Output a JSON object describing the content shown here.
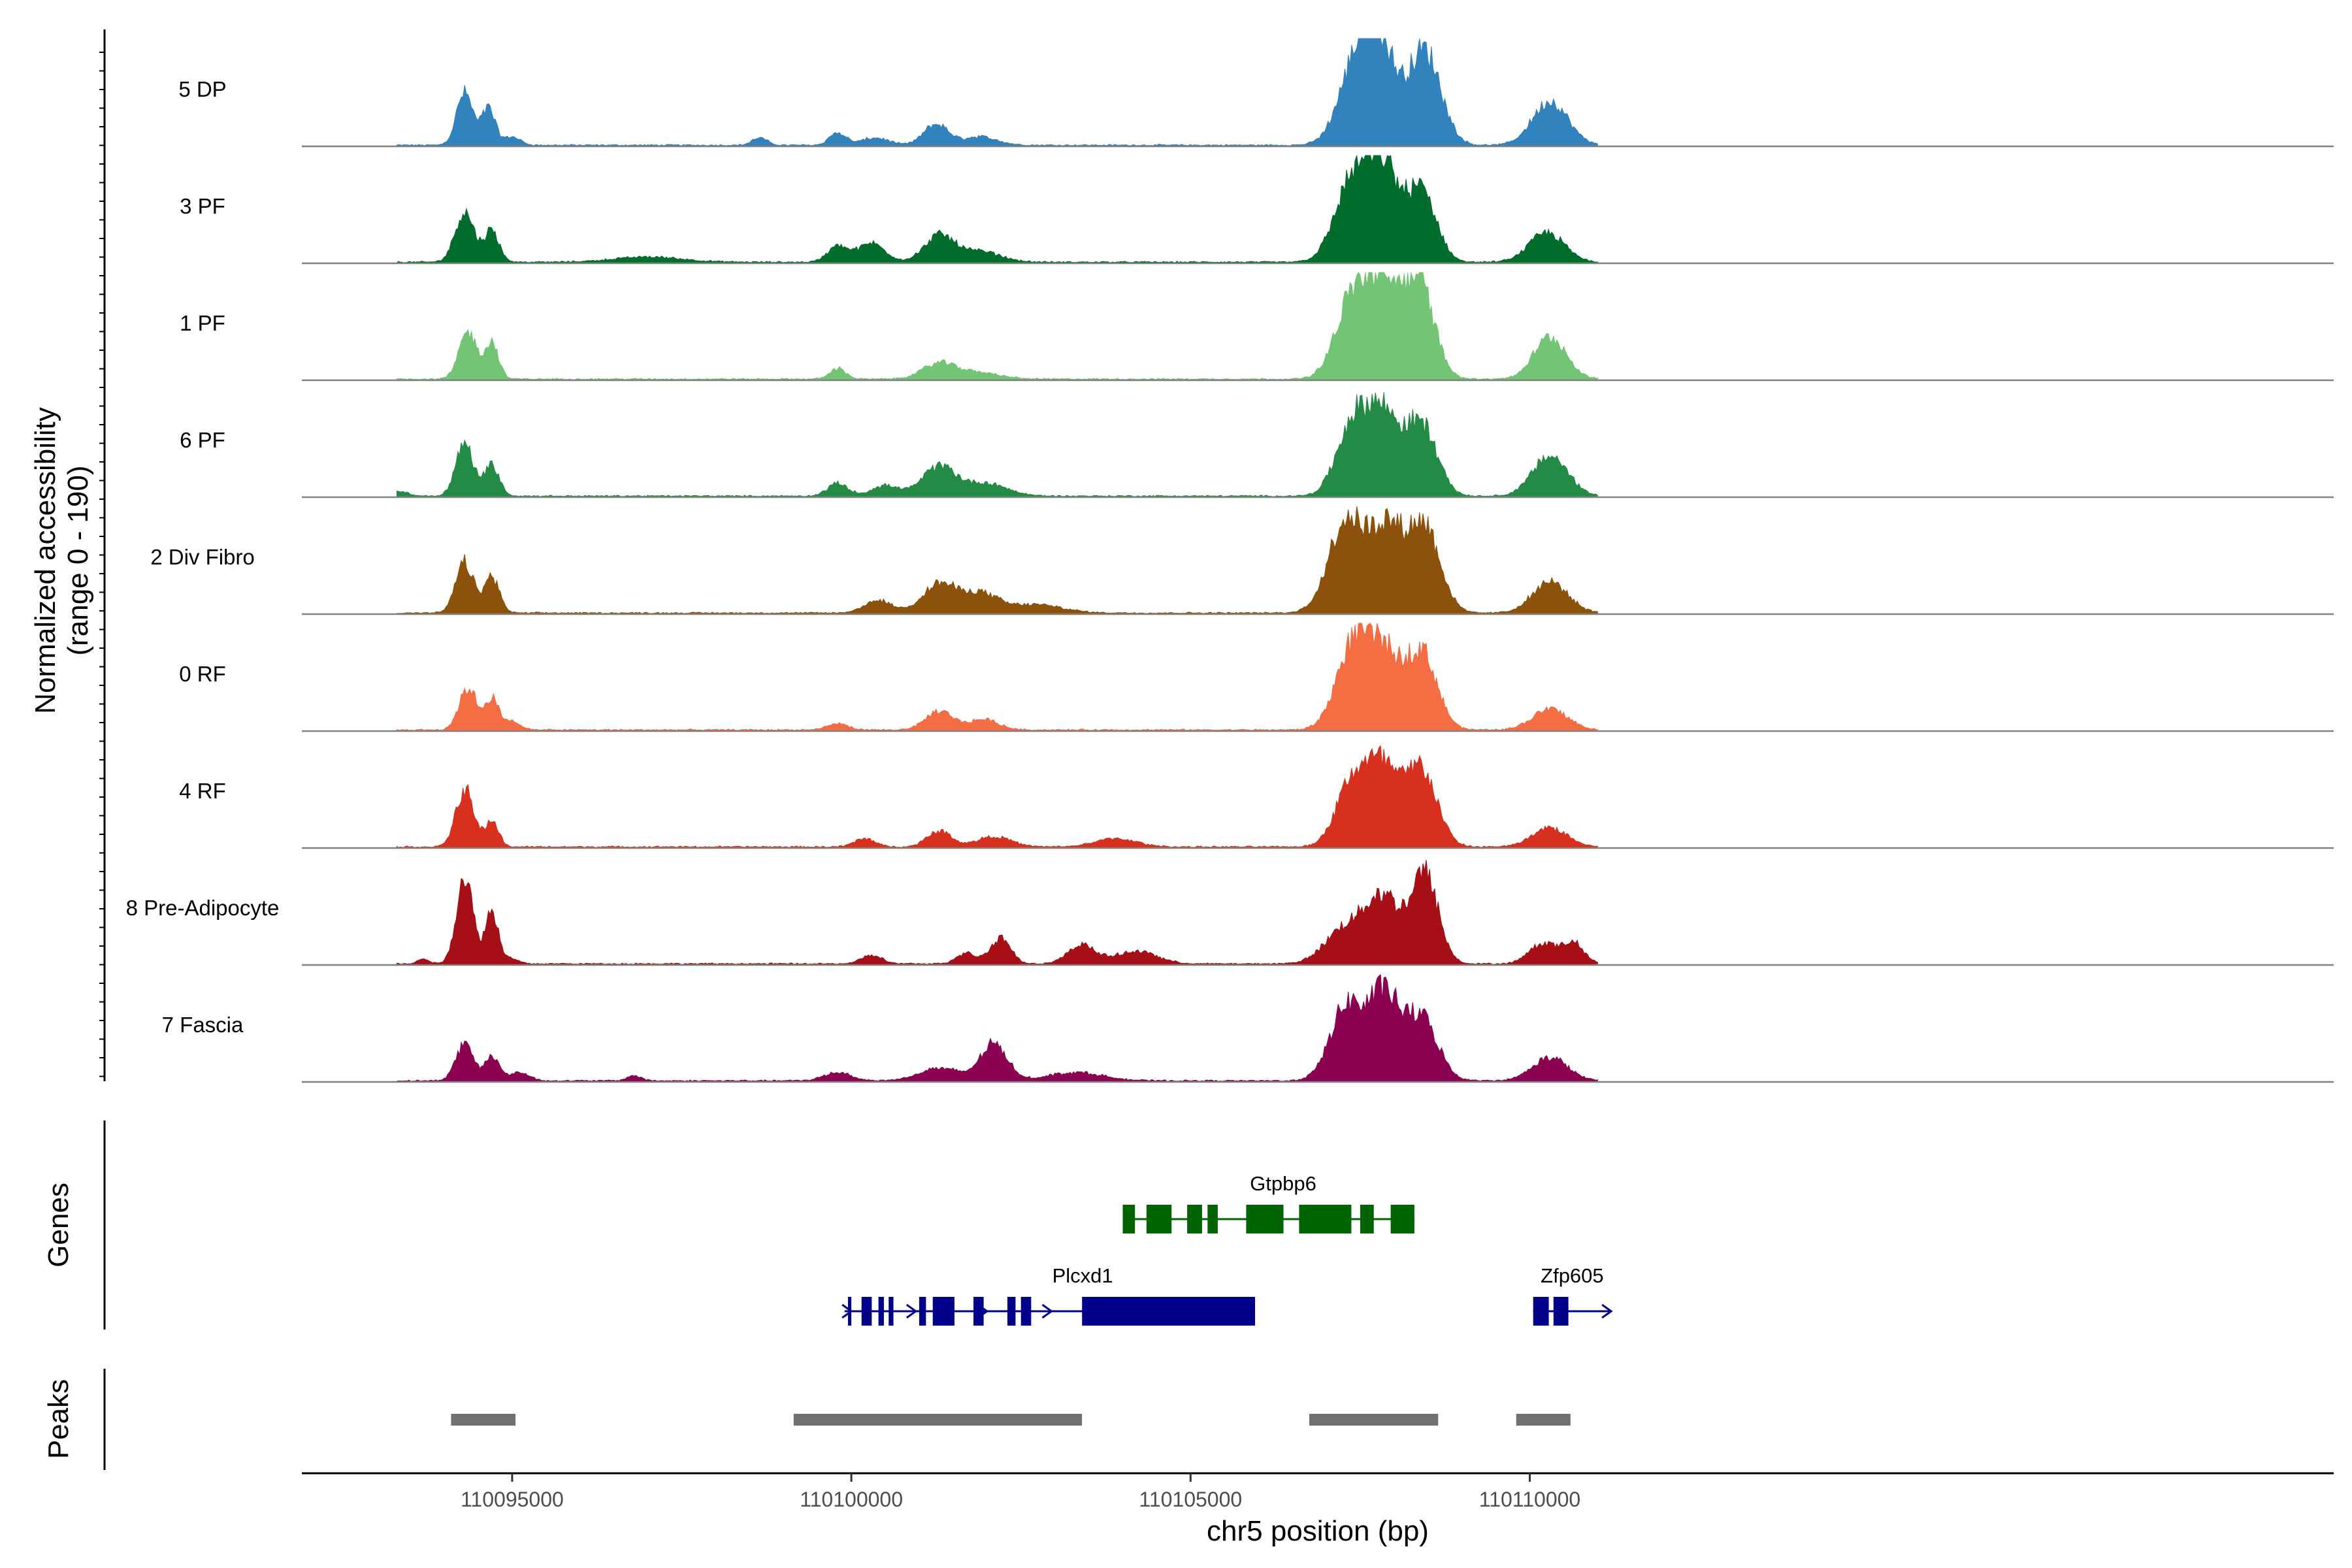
{
  "chart_data": {
    "type": "area",
    "region": {
      "chrom": "chr5",
      "start": 110091900,
      "end": 110121850
    },
    "y_axis_title": [
      "Normalized accessibility",
      "(range 0 - 190)"
    ],
    "y_range": [
      0,
      190
    ],
    "x_axis_title": "chr5 position (bp)",
    "x_ticks": [
      110095000,
      110100000,
      110105000,
      110110000
    ],
    "x_tick_labels": [
      "110095000",
      "110100000",
      "110105000",
      "110110000"
    ],
    "tracks": [
      {
        "name": "5 DP",
        "color": "#3182bd",
        "peaks": [
          [
            110094300,
            0.5,
            120
          ],
          [
            110094650,
            0.35,
            100
          ],
          [
            110095000,
            0.08,
            120
          ],
          [
            110098650,
            0.07,
            110
          ],
          [
            110099800,
            0.12,
            120
          ],
          [
            110100350,
            0.07,
            200
          ],
          [
            110101250,
            0.2,
            180
          ],
          [
            110101900,
            0.08,
            250
          ],
          [
            110107450,
            0.75,
            260
          ],
          [
            110107800,
            0.82,
            230
          ],
          [
            110108450,
            0.9,
            240
          ],
          [
            110110300,
            0.42,
            260
          ]
        ]
      },
      {
        "name": "3 PF",
        "color": "#006d2c",
        "peaks": [
          [
            110094300,
            0.48,
            140
          ],
          [
            110094700,
            0.3,
            110
          ],
          [
            110097000,
            0.05,
            500
          ],
          [
            110099800,
            0.15,
            150
          ],
          [
            110100300,
            0.18,
            200
          ],
          [
            110101300,
            0.25,
            220
          ],
          [
            110101900,
            0.1,
            300
          ],
          [
            110107400,
            0.8,
            260
          ],
          [
            110107850,
            0.82,
            220
          ],
          [
            110108400,
            0.68,
            220
          ],
          [
            110110250,
            0.28,
            260
          ]
        ]
      },
      {
        "name": "1 PF",
        "color": "#74c476",
        "peaks": [
          [
            110094350,
            0.45,
            130
          ],
          [
            110094700,
            0.35,
            100
          ],
          [
            110099800,
            0.1,
            120
          ],
          [
            110101300,
            0.15,
            250
          ],
          [
            110101900,
            0.06,
            300
          ],
          [
            110107400,
            0.8,
            250
          ],
          [
            110107850,
            0.75,
            220
          ],
          [
            110108350,
            0.95,
            230
          ],
          [
            110110300,
            0.4,
            240
          ]
        ]
      },
      {
        "name": "6 PF",
        "color": "#238b45",
        "peaks": [
          [
            110094300,
            0.5,
            130
          ],
          [
            110094700,
            0.3,
            110
          ],
          [
            110093300,
            0.05,
            150
          ],
          [
            110099800,
            0.12,
            150
          ],
          [
            110100500,
            0.1,
            200
          ],
          [
            110101300,
            0.28,
            250
          ],
          [
            110102000,
            0.12,
            300
          ],
          [
            110107400,
            0.7,
            240
          ],
          [
            110107850,
            0.72,
            230
          ],
          [
            110108400,
            0.68,
            230
          ],
          [
            110110300,
            0.38,
            260
          ]
        ]
      },
      {
        "name": "2 Div Fibro",
        "color": "#8c510a",
        "peaks": [
          [
            110094300,
            0.48,
            130
          ],
          [
            110094700,
            0.35,
            110
          ],
          [
            110100400,
            0.12,
            200
          ],
          [
            110101300,
            0.28,
            250
          ],
          [
            110101900,
            0.18,
            250
          ],
          [
            110102700,
            0.08,
            400
          ],
          [
            110107300,
            0.9,
            260
          ],
          [
            110107900,
            0.8,
            240
          ],
          [
            110108450,
            0.82,
            230
          ],
          [
            110110300,
            0.3,
            260
          ]
        ]
      },
      {
        "name": "0 RF",
        "color": "#f46d43",
        "peaks": [
          [
            110094350,
            0.4,
            130
          ],
          [
            110094700,
            0.3,
            100
          ],
          [
            110095000,
            0.08,
            120
          ],
          [
            110099800,
            0.06,
            150
          ],
          [
            110101300,
            0.18,
            200
          ],
          [
            110101950,
            0.1,
            220
          ],
          [
            110107400,
            0.8,
            250
          ],
          [
            110107850,
            0.65,
            230
          ],
          [
            110108400,
            0.75,
            230
          ],
          [
            110110300,
            0.2,
            260
          ]
        ]
      },
      {
        "name": "4 RF",
        "color": "#d7301f",
        "peaks": [
          [
            110094300,
            0.55,
            130
          ],
          [
            110094700,
            0.25,
            100
          ],
          [
            110100200,
            0.08,
            150
          ],
          [
            110101300,
            0.15,
            180
          ],
          [
            110102100,
            0.1,
            250
          ],
          [
            110103900,
            0.08,
            300
          ],
          [
            110107400,
            0.65,
            240
          ],
          [
            110107850,
            0.68,
            220
          ],
          [
            110108400,
            0.75,
            230
          ],
          [
            110110300,
            0.18,
            260
          ]
        ]
      },
      {
        "name": "8 Pre-Adipocyte",
        "color": "#a50f15",
        "peaks": [
          [
            110094300,
            0.85,
            120
          ],
          [
            110094700,
            0.5,
            100
          ],
          [
            110093700,
            0.05,
            80
          ],
          [
            110095000,
            0.05,
            100
          ],
          [
            110100300,
            0.08,
            150
          ],
          [
            110101700,
            0.1,
            150
          ],
          [
            110102200,
            0.25,
            150
          ],
          [
            110103400,
            0.18,
            200
          ],
          [
            110104200,
            0.12,
            300
          ],
          [
            110107300,
            0.35,
            300
          ],
          [
            110107850,
            0.6,
            250
          ],
          [
            110108450,
            0.85,
            200
          ],
          [
            110110200,
            0.2,
            200
          ],
          [
            110110650,
            0.2,
            150
          ]
        ]
      },
      {
        "name": "7 Fascia",
        "color": "#8b0050",
        "peaks": [
          [
            110094300,
            0.35,
            130
          ],
          [
            110094700,
            0.25,
            100
          ],
          [
            110095100,
            0.08,
            150
          ],
          [
            110096800,
            0.05,
            100
          ],
          [
            110099800,
            0.08,
            200
          ],
          [
            110101300,
            0.12,
            300
          ],
          [
            110102100,
            0.35,
            200
          ],
          [
            110103300,
            0.08,
            400
          ],
          [
            110107300,
            0.72,
            240
          ],
          [
            110107850,
            0.8,
            220
          ],
          [
            110108400,
            0.6,
            240
          ],
          [
            110110300,
            0.22,
            260
          ]
        ]
      }
    ],
    "genes": [
      {
        "name": "Gtpbp6",
        "color": "#006400",
        "strand": "-",
        "start": 110104000,
        "end": 110108300,
        "exons": [
          [
            110104000,
            110104180
          ],
          [
            110104350,
            110104720
          ],
          [
            110104950,
            110105170
          ],
          [
            110105250,
            110105400
          ],
          [
            110105820,
            110106370
          ],
          [
            110106600,
            110107370
          ],
          [
            110107500,
            110107700
          ],
          [
            110107950,
            110108300
          ]
        ]
      },
      {
        "name": "Plcxd1",
        "color": "#00008b",
        "strand": "+",
        "start": 110099900,
        "end": 110105950,
        "exons": [
          [
            110099950,
            110100000
          ],
          [
            110100150,
            110100300
          ],
          [
            110100400,
            110100480
          ],
          [
            110100550,
            110100620
          ],
          [
            110101000,
            110101100
          ],
          [
            110101200,
            110101520
          ],
          [
            110101800,
            110101950
          ],
          [
            110102300,
            110102420
          ],
          [
            110102500,
            110102650
          ],
          [
            110103400,
            110105950
          ]
        ]
      },
      {
        "name": "Zfp605",
        "color": "#00008b",
        "strand": "+",
        "start": 110110050,
        "end": 110111200,
        "exons": [
          [
            110110050,
            110110280
          ],
          [
            110110350,
            110110570
          ]
        ]
      }
    ],
    "peaks_track": [
      [
        110094100,
        110095050
      ],
      [
        110099150,
        110103400
      ],
      [
        110106750,
        110108650
      ],
      [
        110109800,
        110110600
      ]
    ],
    "panel_labels": {
      "genes": "Genes",
      "peaks": "Peaks"
    },
    "peak_color": "#707070"
  }
}
